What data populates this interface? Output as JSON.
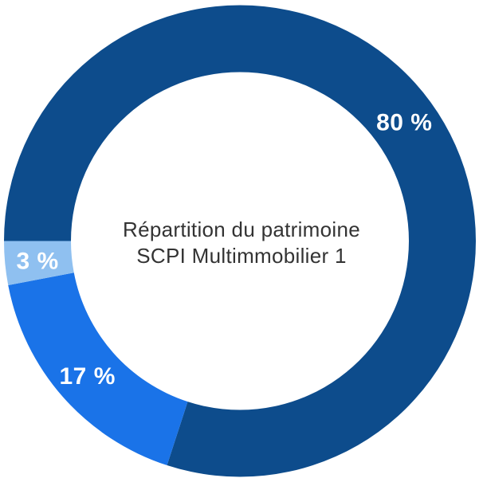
{
  "chart_data": {
    "type": "pie",
    "variant": "donut",
    "title": "Répartition du patrimoine SCPI Multimmobilier 1",
    "center_text_lines": [
      "Répartition du patrimoine",
      "SCPI Multimmobilier 1"
    ],
    "direction": "clockwise",
    "start_angle_clockwise_from_top_deg": 270,
    "inner_radius_ratio": 0.72,
    "legend_position": "none",
    "segments": [
      {
        "label": "80 %",
        "value": 80,
        "color": "#0D4C8C"
      },
      {
        "label": "17 %",
        "value": 17,
        "color": "#1A73E8"
      },
      {
        "label": "3 %",
        "value": 3,
        "color": "#8FC0F0"
      }
    ],
    "slice_label_color": "#FFFFFF",
    "center_text_color": "#333333",
    "background_color": "#FFFFFF"
  }
}
